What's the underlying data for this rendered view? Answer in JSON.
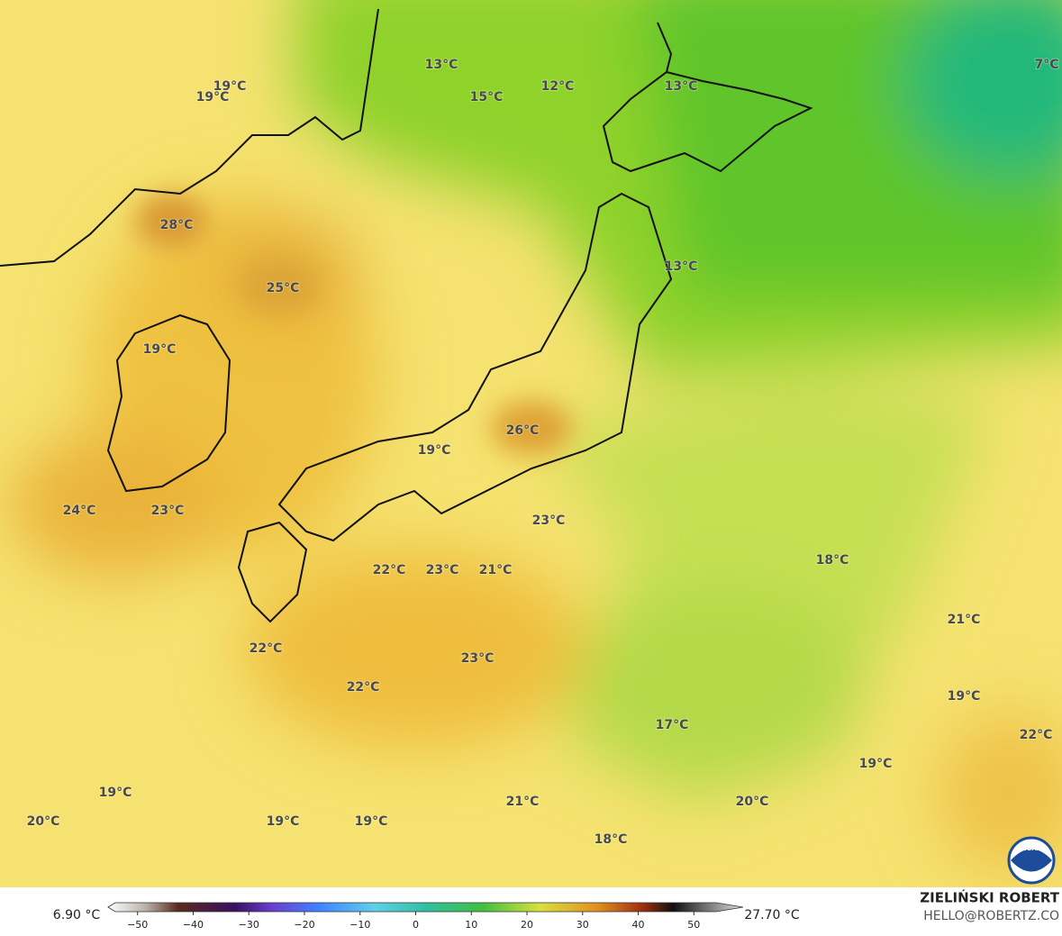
{
  "map": {
    "labels": [
      "19°C",
      "19°C",
      "13°C",
      "15°C",
      "12°C",
      "13°C",
      "7°C",
      "28°C",
      "25°C",
      "13°C",
      "19°C",
      "26°C",
      "19°C",
      "24°C",
      "23°C",
      "23°C",
      "18°C",
      "22°C",
      "23°C",
      "21°C",
      "21°C",
      "22°C",
      "23°C",
      "22°C",
      "19°C",
      "17°C",
      "22°C",
      "19°C",
      "19°C",
      "20°C",
      "21°C",
      "20°C",
      "19°C",
      "19°C",
      "18°C"
    ]
  },
  "colorbar": {
    "min_label": "6.90 °C",
    "max_label": "27.70 °C",
    "lim": [
      -54,
      54
    ],
    "ticks": [
      {
        "value": -50,
        "label": "−50"
      },
      {
        "value": -40,
        "label": "−40"
      },
      {
        "value": -30,
        "label": "−30"
      },
      {
        "value": -20,
        "label": "−20"
      },
      {
        "value": -10,
        "label": "−10"
      },
      0,
      10,
      20,
      30,
      40,
      50
    ]
  },
  "credits": {
    "author": "ZIELIŃSKI ROBERT",
    "site": "HELLO@ROBERTZ.CO",
    "logo": "NOAA"
  }
}
